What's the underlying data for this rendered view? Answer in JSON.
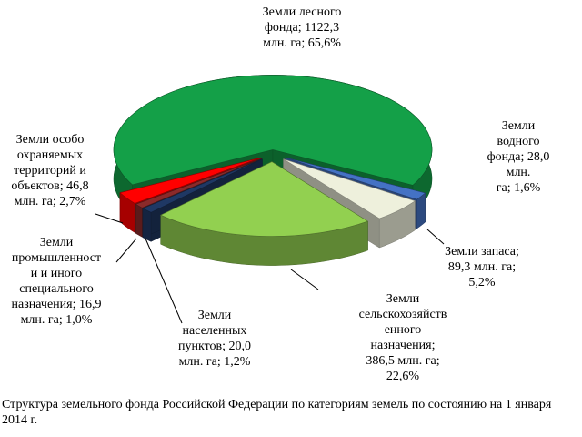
{
  "chart_data": {
    "type": "pie3d",
    "title": "Структура земельного фонда Российской Федерации по категориям земель по состоянию на 1 января 2014 г.",
    "values": [
      65.6,
      1.6,
      5.2,
      22.6,
      1.2,
      1.0,
      2.7
    ],
    "value_labels": [
      "Земли лесного\nфонда; 1122,3\nмлн. га; 65,6%",
      "Земли водного\nфонда; 28,0 млн.\nга; 1,6%",
      "Земли запаса;\n89,3 млн. га;\n5,2%",
      "Земли\nсельскохозяйств\nенного\nназначения;\n386,5 млн. га;\n22,6%",
      "Земли\nнаселенных\nпунктов; 20,0\nмлн. га; 1,2%",
      "Земли\nпромышленност\nи и иного\nспециального\nназначения; 16,9\nмлн. га; 1,0%",
      "Земли особо\nохраняемых\nтерриторий и\nобъектов; 46,8\nмлн. га; 2,7%"
    ],
    "colors": [
      "#14a048",
      "#4472c4",
      "#eef0dc",
      "#92d050",
      "#1f3864",
      "#8b2a2a",
      "#ff0000"
    ]
  }
}
